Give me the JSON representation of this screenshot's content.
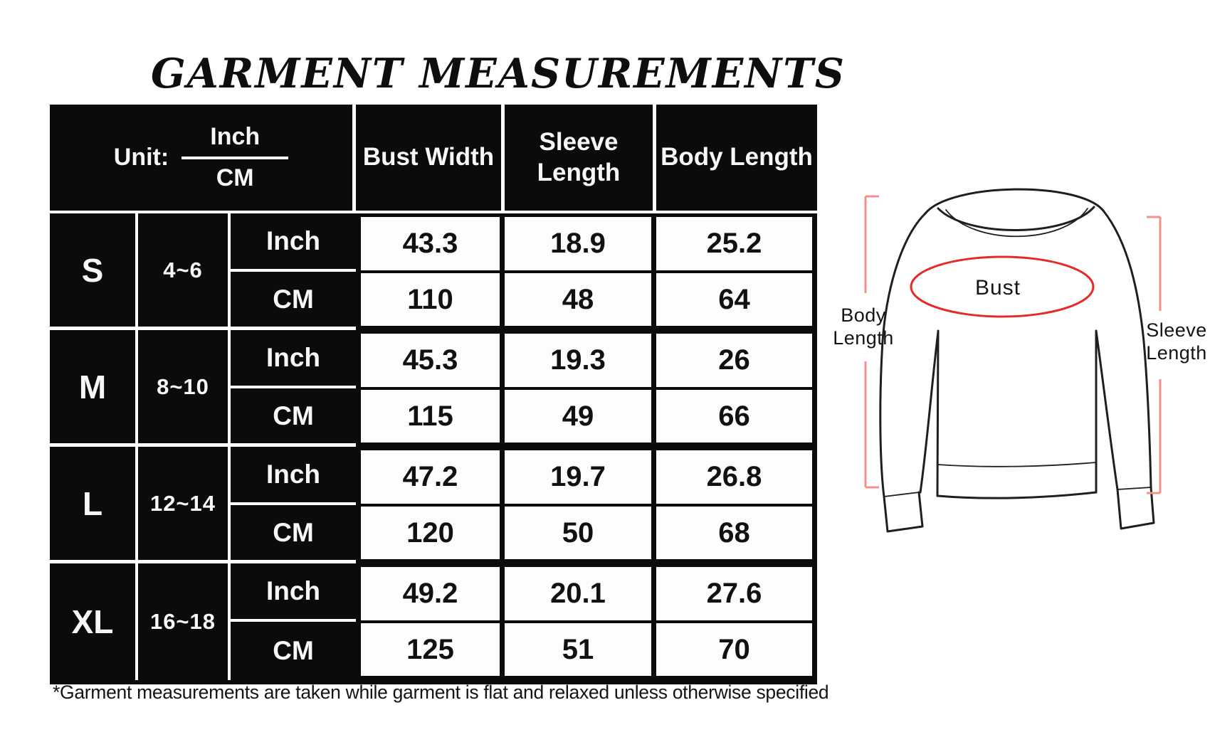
{
  "title": "GARMENT MEASUREMENTS",
  "table": {
    "unit_label": "Unit:",
    "unit_options": [
      "Inch",
      "CM"
    ],
    "columns": [
      "Bust Width",
      "Sleeve Length",
      "Body Length"
    ],
    "rows": [
      {
        "size": "S",
        "range": "4~6",
        "inch": [
          "43.3",
          "18.9",
          "25.2"
        ],
        "cm": [
          "110",
          "48",
          "64"
        ]
      },
      {
        "size": "M",
        "range": "8~10",
        "inch": [
          "45.3",
          "19.3",
          "26"
        ],
        "cm": [
          "115",
          "49",
          "66"
        ]
      },
      {
        "size": "L",
        "range": "12~14",
        "inch": [
          "47.2",
          "19.7",
          "26.8"
        ],
        "cm": [
          "120",
          "50",
          "68"
        ]
      },
      {
        "size": "XL",
        "range": "16~18",
        "inch": [
          "49.2",
          "20.1",
          "27.6"
        ],
        "cm": [
          "125",
          "51",
          "70"
        ]
      }
    ]
  },
  "footnote": "*Garment measurements are taken while garment is flat and relaxed unless otherwise specified",
  "diagram": {
    "body_length_line1": "Body",
    "body_length_line2": "Length",
    "sleeve_length_line1": "Sleeve",
    "sleeve_length_line2": "Length",
    "bust_label": "Bust"
  },
  "colors": {
    "bracket": "#f4908c",
    "bust_ellipse": "#e62b26",
    "outline": "#1f1f1f",
    "corner_mark": "#4c8442",
    "table_black": "#0b0b0b"
  }
}
